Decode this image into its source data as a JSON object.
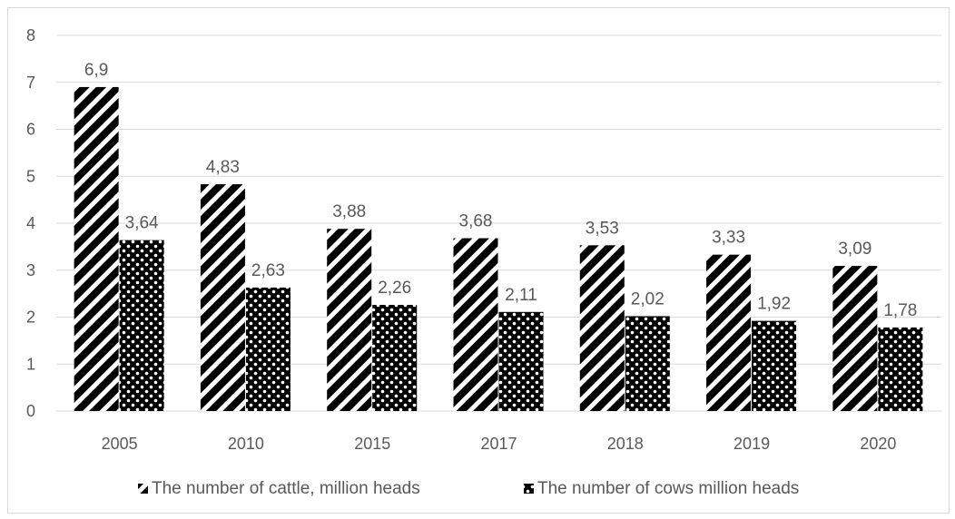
{
  "chart_data": {
    "type": "bar",
    "title": "",
    "xlabel": "",
    "ylabel": "",
    "categories": [
      "2005",
      "2010",
      "2015",
      "2017",
      "2018",
      "2019",
      "2020"
    ],
    "ylim": [
      0,
      8
    ],
    "yticks": [
      0,
      1,
      2,
      3,
      4,
      5,
      6,
      7,
      8
    ],
    "grid": true,
    "legend_position": "bottom",
    "series": [
      {
        "name": "The number of cattle, million heads",
        "values": [
          6.9,
          4.83,
          3.88,
          3.68,
          3.53,
          3.33,
          3.09
        ],
        "labels": [
          "6,9",
          "4,83",
          "3,88",
          "3,68",
          "3,53",
          "3,33",
          "3,09"
        ],
        "pattern": "diagonal-stripes"
      },
      {
        "name": "The number of cows million heads",
        "values": [
          3.64,
          2.63,
          2.26,
          2.11,
          2.02,
          1.92,
          1.78
        ],
        "labels": [
          "3,64",
          "2,63",
          "2,26",
          "2,11",
          "2,02",
          "1,92",
          "1,78"
        ],
        "pattern": "checker-dots"
      }
    ],
    "colors": {
      "bar": "#000000",
      "grid": "#d9d9d9",
      "text": "#595959"
    }
  }
}
